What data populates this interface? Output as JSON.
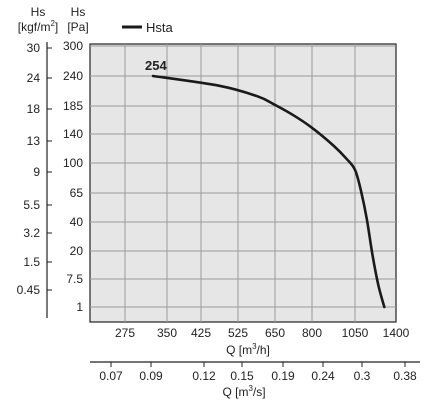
{
  "chart_data": {
    "type": "line",
    "title": "",
    "y_left_unit": {
      "line1": "Hs",
      "line2": "[kgf/m",
      "sup": "2",
      "close": "]"
    },
    "y_main_unit": {
      "line1": "Hs",
      "line2": "[Pa]"
    },
    "y_main_ticks": [
      "300",
      "240",
      "185",
      "140",
      "100",
      "65",
      "40",
      "20",
      "7.5",
      "1"
    ],
    "y_left_ticks": [
      "30",
      "24",
      "18",
      "13",
      "9",
      "5.5",
      "3.2",
      "1.5",
      "0.45"
    ],
    "x_main_ticks": [
      "275",
      "350",
      "425",
      "525",
      "650",
      "800",
      "1050",
      "1400"
    ],
    "x_main_label": {
      "text": "Q [m",
      "sup": "3",
      "close": "/h]"
    },
    "x_sec_ticks": [
      "0.07",
      "0.09",
      "0.12",
      "0.15",
      "0.19",
      "0.24",
      "0.3",
      "0.38"
    ],
    "x_sec_label": {
      "text": "Q [m",
      "sup": "3",
      "close": "/s]"
    },
    "series": [
      {
        "name": "Hsta",
        "color": "#1a1a1a",
        "points": [
          [
            325,
            240
          ],
          [
            475,
            222
          ],
          [
            590,
            203
          ],
          [
            650,
            187
          ],
          [
            725,
            170
          ],
          [
            800,
            150
          ],
          [
            925,
            124
          ],
          [
            1000,
            106
          ],
          [
            1050,
            92
          ],
          [
            1100,
            68
          ],
          [
            1150,
            43
          ],
          [
            1200,
            18
          ],
          [
            1250,
            6
          ],
          [
            1300,
            1
          ]
        ]
      }
    ],
    "annotation": "254",
    "grid": true,
    "legend": "top-left"
  },
  "colors": {
    "plot_bg": "#e6e6e6",
    "grid": "#9a9a9a",
    "axis": "#222222"
  }
}
